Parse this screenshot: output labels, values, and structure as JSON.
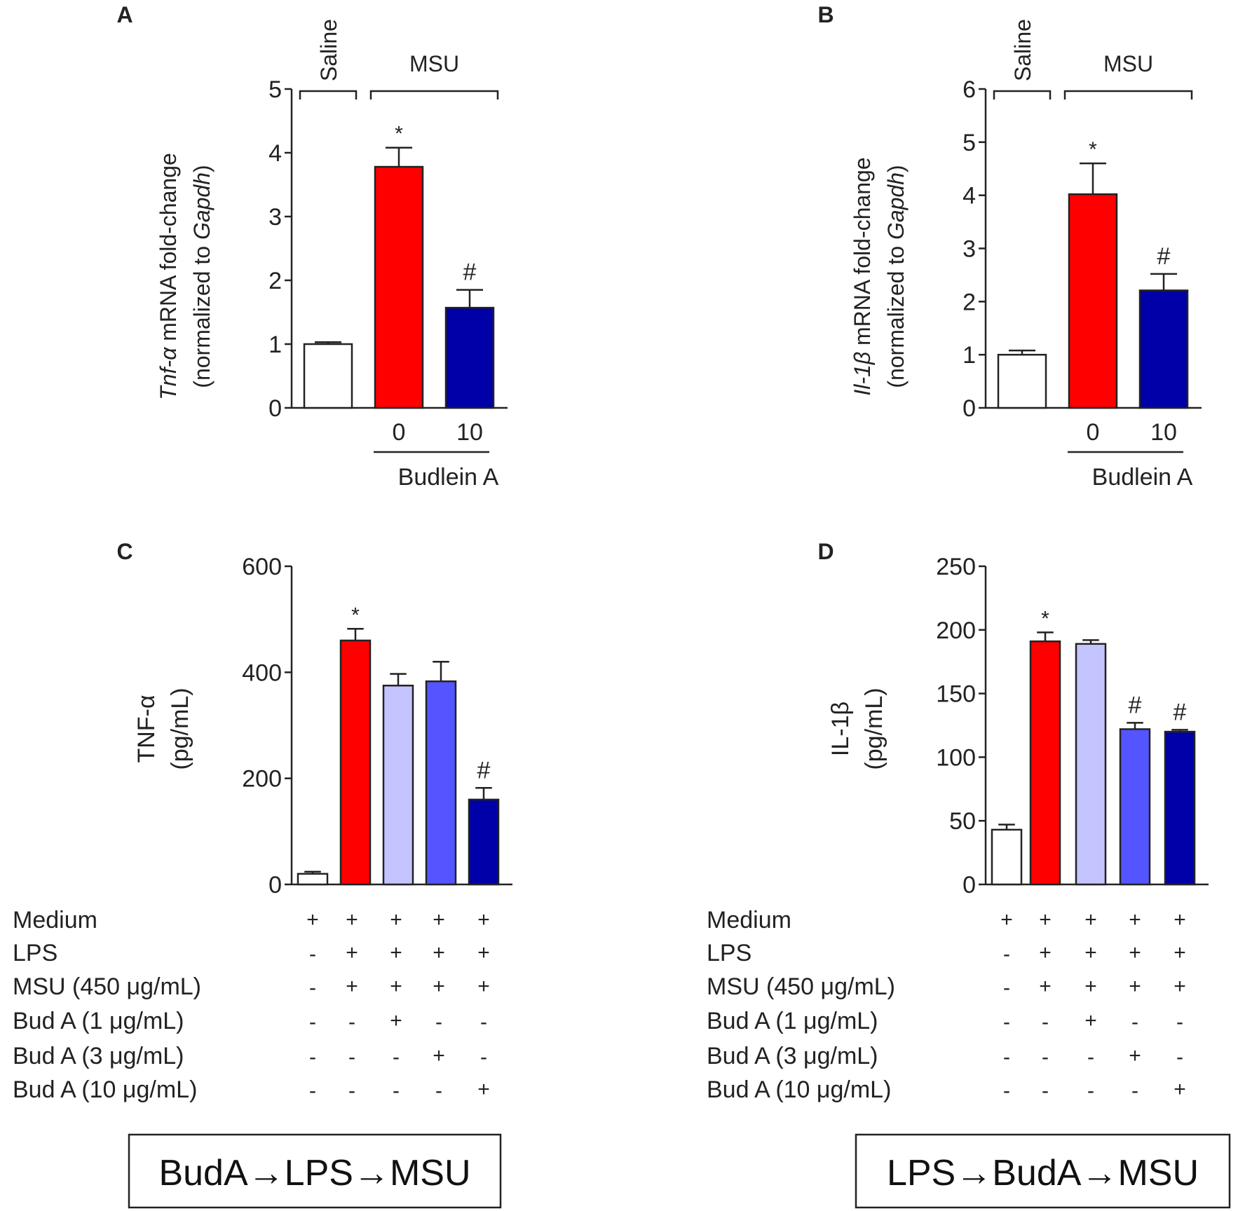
{
  "chart_data": [
    {
      "type": "bar",
      "panel": "A",
      "ylabel_italic": "Tnf-α",
      "ylabel_rest": " mRNA fold-change",
      "ylabel2_prefix": "(normalized to ",
      "ylabel2_italic": "Gapdh",
      "ylabel2_suffix": ")",
      "ylim": [
        0,
        5
      ],
      "yticks": [
        "0",
        "1",
        "2",
        "3",
        "4",
        "5"
      ],
      "groups": [
        {
          "name": "Saline",
          "bars": [
            0
          ]
        },
        {
          "name": "MSU",
          "bars": [
            1,
            2
          ]
        }
      ],
      "dose_labels": [
        "",
        "0",
        "10"
      ],
      "treatment_label": "Budlein  A",
      "bars": [
        {
          "value": 1.0,
          "error": 0.03,
          "color": "#ffffff",
          "annotation": ""
        },
        {
          "value": 3.78,
          "error": 0.3,
          "color": "#ff0000",
          "annotation": "*"
        },
        {
          "value": 1.57,
          "error": 0.28,
          "color": "#0000a8",
          "annotation": "#"
        }
      ]
    },
    {
      "type": "bar",
      "panel": "B",
      "ylabel_italic": "Il-1β",
      "ylabel_rest": " mRNA fold-change",
      "ylabel2_prefix": "(normalized to ",
      "ylabel2_italic": "Gapdh",
      "ylabel2_suffix": ")",
      "ylim": [
        0,
        6
      ],
      "yticks": [
        "0",
        "1",
        "2",
        "3",
        "4",
        "5",
        "6"
      ],
      "groups": [
        {
          "name": "Saline",
          "bars": [
            0
          ]
        },
        {
          "name": "MSU",
          "bars": [
            1,
            2
          ]
        }
      ],
      "dose_labels": [
        "",
        "0",
        "10"
      ],
      "treatment_label": "Budlein  A",
      "bars": [
        {
          "value": 1.0,
          "error": 0.08,
          "color": "#ffffff",
          "annotation": ""
        },
        {
          "value": 4.02,
          "error": 0.58,
          "color": "#ff0000",
          "annotation": "*"
        },
        {
          "value": 2.21,
          "error": 0.31,
          "color": "#0000a8",
          "annotation": "#"
        }
      ]
    },
    {
      "type": "bar",
      "panel": "C",
      "ylabel_line1": "TNF-α",
      "ylabel_line2": "(pg/mL)",
      "ylim": [
        0,
        600
      ],
      "yticks": [
        "0",
        "200",
        "400",
        "600"
      ],
      "bars": [
        {
          "value": 20,
          "error": 4,
          "color": "#ffffff",
          "annotation": ""
        },
        {
          "value": 460,
          "error": 22,
          "color": "#ff0000",
          "annotation": "*"
        },
        {
          "value": 375,
          "error": 22,
          "color": "#c4c4ff",
          "annotation": ""
        },
        {
          "value": 383,
          "error": 37,
          "color": "#5555ff",
          "annotation": ""
        },
        {
          "value": 160,
          "error": 22,
          "color": "#0000a8",
          "annotation": "#"
        }
      ],
      "treatment_rows": [
        {
          "label": "Medium",
          "signs": [
            "+",
            "+",
            "+",
            "+",
            "+"
          ]
        },
        {
          "label": "LPS",
          "signs": [
            "-",
            "+",
            "+",
            "+",
            "+"
          ]
        },
        {
          "label": "MSU (450 μg/mL)",
          "signs": [
            "-",
            "+",
            "+",
            "+",
            "+"
          ]
        },
        {
          "label": "Bud A (1 μg/mL)",
          "signs": [
            "-",
            "-",
            "+",
            "-",
            "-"
          ]
        },
        {
          "label": "Bud A (3 μg/mL)",
          "signs": [
            "-",
            "-",
            "-",
            "+",
            "-"
          ]
        },
        {
          "label": "Bud A (10 μg/mL)",
          "signs": [
            "-",
            "-",
            "-",
            "-",
            "+"
          ]
        }
      ],
      "sequence": [
        "BudA",
        "LPS",
        "MSU"
      ]
    },
    {
      "type": "bar",
      "panel": "D",
      "ylabel_line1": "IL-1β",
      "ylabel_line2": "(pg/mL)",
      "ylim": [
        0,
        250
      ],
      "yticks": [
        "0",
        "50",
        "100",
        "150",
        "200",
        "250"
      ],
      "bars": [
        {
          "value": 43,
          "error": 4,
          "color": "#ffffff",
          "annotation": ""
        },
        {
          "value": 191,
          "error": 7,
          "color": "#ff0000",
          "annotation": "*"
        },
        {
          "value": 189,
          "error": 3,
          "color": "#c4c4ff",
          "annotation": ""
        },
        {
          "value": 122,
          "error": 5,
          "color": "#5555ff",
          "annotation": "#"
        },
        {
          "value": 120,
          "error": 1.5,
          "color": "#0000a8",
          "annotation": "#"
        }
      ],
      "treatment_rows": [
        {
          "label": "Medium",
          "signs": [
            "+",
            "+",
            "+",
            "+",
            "+"
          ]
        },
        {
          "label": "LPS",
          "signs": [
            "-",
            "+",
            "+",
            "+",
            "+"
          ]
        },
        {
          "label": "MSU (450 μg/mL)",
          "signs": [
            "-",
            "+",
            "+",
            "+",
            "+"
          ]
        },
        {
          "label": "Bud A (1 μg/mL)",
          "signs": [
            "-",
            "-",
            "+",
            "-",
            "-"
          ]
        },
        {
          "label": "Bud A (3 μg/mL)",
          "signs": [
            "-",
            "-",
            "-",
            "+",
            "-"
          ]
        },
        {
          "label": "Bud A (10 μg/mL)",
          "signs": [
            "-",
            "-",
            "-",
            "-",
            "+"
          ]
        }
      ],
      "sequence": [
        "LPS",
        "BudA",
        "MSU"
      ]
    }
  ]
}
